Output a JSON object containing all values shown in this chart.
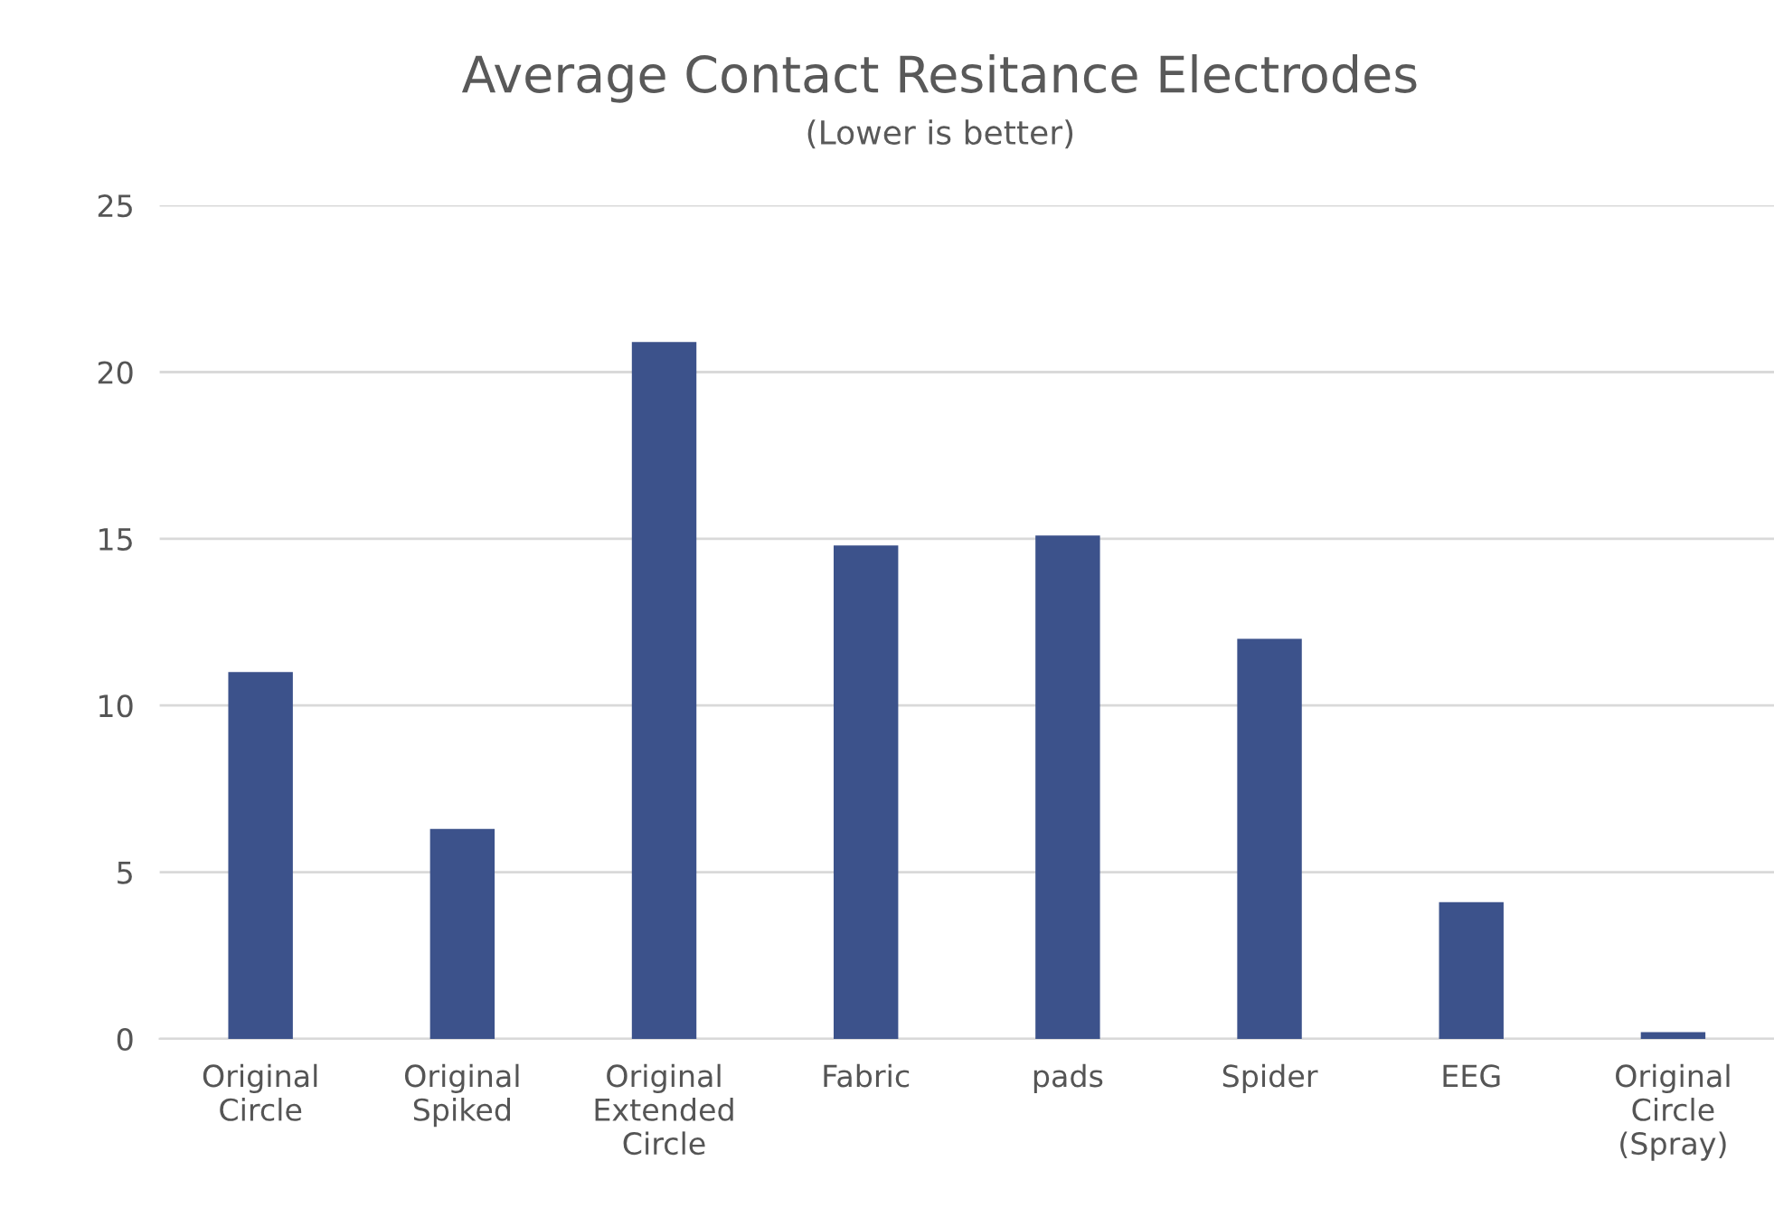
{
  "chart_data": {
    "type": "bar",
    "title": "Average Contact Resitance Electrodes",
    "subtitle": "(Lower is better)",
    "categories": [
      "Original\nCircle",
      "Original\nSpiked",
      "Original\nExtended\nCircle",
      "Fabric",
      "pads",
      "Spider",
      "EEG",
      "Original\nCircle\n(Spray)"
    ],
    "values": [
      11.0,
      6.3,
      20.9,
      14.8,
      15.1,
      12.0,
      4.1,
      0.2
    ],
    "color": "#3c528b",
    "ylim": [
      0,
      25
    ],
    "yticks": [
      0,
      5,
      10,
      15,
      20,
      25
    ],
    "grid": "y",
    "legend": false
  }
}
